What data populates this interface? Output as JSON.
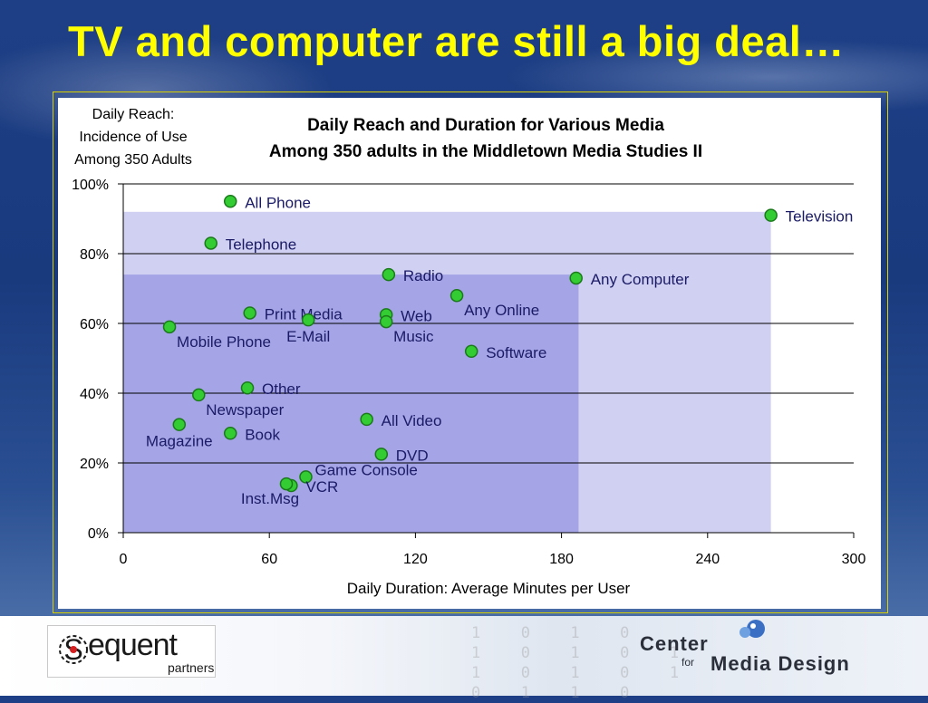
{
  "slide": {
    "title": "TV and computer are still a big deal…"
  },
  "footer": {
    "left_logo": {
      "text": "equent",
      "sub": "partners",
      "icon": "sequent-s-logo-icon"
    },
    "right_logo": {
      "line1": "Center",
      "for": "for",
      "line2": "Media Design",
      "icon": "wing-logo-icon"
    },
    "binary_rows": [
      "1  0  1  0",
      "1  0  1  0  1",
      "1  0  1  0  1",
      "0  1  1  0"
    ]
  },
  "chart_data": {
    "type": "scatter",
    "title": [
      "Daily Reach and Duration for Various Media",
      "Among 350 adults in the Middletown Media Studies II"
    ],
    "ylabel": [
      "Daily Reach:",
      "Incidence of Use",
      "Among 350 Adults"
    ],
    "xlabel": "Daily Duration: Average Minutes per User",
    "xlim": [
      0,
      300
    ],
    "ylim": [
      0,
      100
    ],
    "x_ticks": [
      "0",
      "60",
      "120",
      "180",
      "240",
      "300"
    ],
    "y_ticks": [
      "0%",
      "20%",
      "40%",
      "60%",
      "80%",
      "100%"
    ],
    "grid": "horizontal",
    "background_regions": [
      {
        "x_max": 266,
        "y_max": 92,
        "color": "#d0d0f2"
      },
      {
        "x_max": 187,
        "y_max": 74,
        "color": "#a4a4e6"
      }
    ],
    "colors": {
      "point_fill": "#33cc33",
      "point_stroke": "#1a7a1a",
      "axis": "#000000",
      "grid": "#000000"
    },
    "points": [
      {
        "label": "All Phone",
        "x": 44,
        "y": 95,
        "anchor": "right"
      },
      {
        "label": "Television",
        "x": 266,
        "y": 91,
        "anchor": "right"
      },
      {
        "label": "Telephone",
        "x": 36,
        "y": 83,
        "anchor": "right"
      },
      {
        "label": "Radio",
        "x": 109,
        "y": 74,
        "anchor": "right"
      },
      {
        "label": "Any Computer",
        "x": 186,
        "y": 73,
        "anchor": "right"
      },
      {
        "label": "Any Online",
        "x": 137,
        "y": 68,
        "anchor": "below-right"
      },
      {
        "label": "Print Media",
        "x": 52,
        "y": 63,
        "anchor": "right"
      },
      {
        "label": "E-Mail",
        "x": 76,
        "y": 61,
        "anchor": "below"
      },
      {
        "label": "Web",
        "x": 108,
        "y": 62.5,
        "anchor": "right"
      },
      {
        "label": "Music",
        "x": 108,
        "y": 60.5,
        "anchor": "below-right"
      },
      {
        "label": "Mobile Phone",
        "x": 19,
        "y": 59,
        "anchor": "below-right"
      },
      {
        "label": "Software",
        "x": 143,
        "y": 52,
        "anchor": "right"
      },
      {
        "label": "Other",
        "x": 51,
        "y": 41.5,
        "anchor": "right"
      },
      {
        "label": "Newspaper",
        "x": 31,
        "y": 39.5,
        "anchor": "below-right"
      },
      {
        "label": "All Video",
        "x": 100,
        "y": 32.5,
        "anchor": "right"
      },
      {
        "label": "Magazine",
        "x": 23,
        "y": 31,
        "anchor": "below"
      },
      {
        "label": "Book",
        "x": 44,
        "y": 28.5,
        "anchor": "right"
      },
      {
        "label": "DVD",
        "x": 106,
        "y": 22.5,
        "anchor": "right"
      },
      {
        "label": "Game Console",
        "x": 75,
        "y": 16,
        "anchor": "above-right"
      },
      {
        "label": "VCR",
        "x": 69,
        "y": 13.5,
        "anchor": "right"
      },
      {
        "label": "Inst.Msg",
        "x": 67,
        "y": 14,
        "anchor": "below-left"
      }
    ]
  }
}
